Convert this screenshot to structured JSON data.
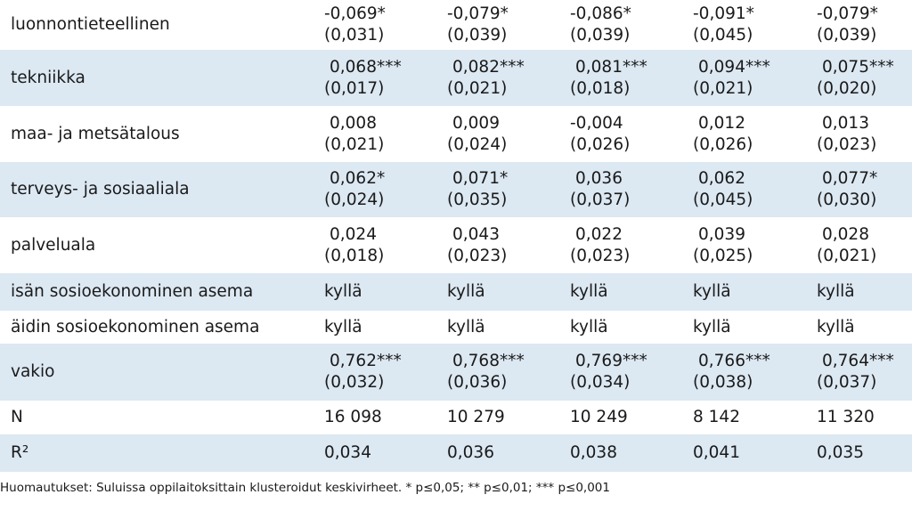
{
  "rows": [
    {
      "label": "luonnontieteellinen",
      "cells": [
        [
          "-0,069*",
          "(0,031)"
        ],
        [
          "-0,079*",
          "(0,039)"
        ],
        [
          "-0,086*",
          "(0,039)"
        ],
        [
          "-0,091*",
          "(0,045)"
        ],
        [
          "-0,079*",
          "(0,039)"
        ]
      ]
    },
    {
      "label": "tekniikka",
      "cells": [
        [
          "0,068***",
          "(0,017)"
        ],
        [
          "0,082***",
          "(0,021)"
        ],
        [
          "0,081***",
          "(0,018)"
        ],
        [
          "0,094***",
          "(0,021)"
        ],
        [
          "0,075***",
          "(0,020)"
        ]
      ]
    },
    {
      "label": "maa- ja metsätalous",
      "cells": [
        [
          "0,008",
          "(0,021)"
        ],
        [
          "0,009",
          "(0,024)"
        ],
        [
          "-0,004",
          "(0,026)"
        ],
        [
          "0,012",
          "(0,026)"
        ],
        [
          "0,013",
          "(0,023)"
        ]
      ]
    },
    {
      "label": "terveys- ja sosiaaliala",
      "cells": [
        [
          "0,062*",
          "(0,024)"
        ],
        [
          "0,071*",
          "(0,035)"
        ],
        [
          "0,036",
          "(0,037)"
        ],
        [
          "0,062",
          "(0,045)"
        ],
        [
          "0,077*",
          "(0,030)"
        ]
      ]
    },
    {
      "label": "palveluala",
      "cells": [
        [
          "0,024",
          "(0,018)"
        ],
        [
          "0,043",
          "(0,023)"
        ],
        [
          "0,022",
          "(0,023)"
        ],
        [
          "0,039",
          "(0,025)"
        ],
        [
          "0,028",
          "(0,021)"
        ]
      ]
    },
    {
      "label": "isän sosioekonominen asema",
      "cells": [
        [
          "kyllä"
        ],
        [
          "kyllä"
        ],
        [
          "kyllä"
        ],
        [
          "kyllä"
        ],
        [
          "kyllä"
        ]
      ]
    },
    {
      "label": "äidin sosioekonominen asema",
      "cells": [
        [
          "kyllä"
        ],
        [
          "kyllä"
        ],
        [
          "kyllä"
        ],
        [
          "kyllä"
        ],
        [
          "kyllä"
        ]
      ]
    },
    {
      "label": "vakio",
      "cells": [
        [
          "0,762***",
          "(0,032)"
        ],
        [
          "0,768***",
          "(0,036)"
        ],
        [
          "0,769***",
          "(0,034)"
        ],
        [
          "0,766***",
          "(0,038)"
        ],
        [
          "0,764***",
          "(0,037)"
        ]
      ]
    },
    {
      "label": "N",
      "cells": [
        [
          "16 098"
        ],
        [
          "10 279"
        ],
        [
          "10 249"
        ],
        [
          "8 142"
        ],
        [
          "11 320"
        ]
      ]
    },
    {
      "label": "R²",
      "cells": [
        [
          "0,034"
        ],
        [
          "0,036"
        ],
        [
          "0,038"
        ],
        [
          "0,041"
        ],
        [
          "0,035"
        ]
      ]
    }
  ],
  "note": "Huomautukset: Suluissa oppilaitoksittain klusteroidut keskivirheet. * p≤0,05; ** p≤0,01; *** p≤0,001",
  "colors": {
    "shaded_row": "#dce8f2",
    "text": "#1a1a1a"
  }
}
